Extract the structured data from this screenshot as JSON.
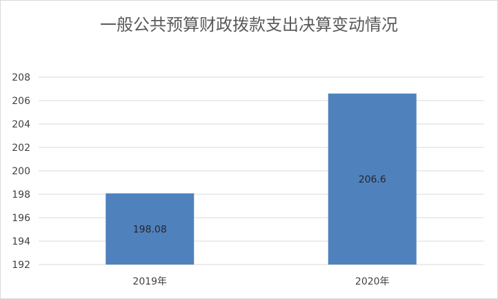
{
  "chart_data": {
    "type": "bar",
    "title": "一般公共预算财政拨款支出决算变动情况",
    "categories": [
      "2019年",
      "2020年"
    ],
    "values": [
      198.08,
      206.6
    ],
    "data_labels": [
      "198.08",
      "206.6"
    ],
    "ylim": [
      192,
      208
    ],
    "yticks": [
      192,
      194,
      196,
      198,
      200,
      202,
      204,
      206,
      208
    ],
    "xlabel": "",
    "ylabel": "",
    "grid": true,
    "legend": "none",
    "bar_color": "#4f81bd"
  }
}
